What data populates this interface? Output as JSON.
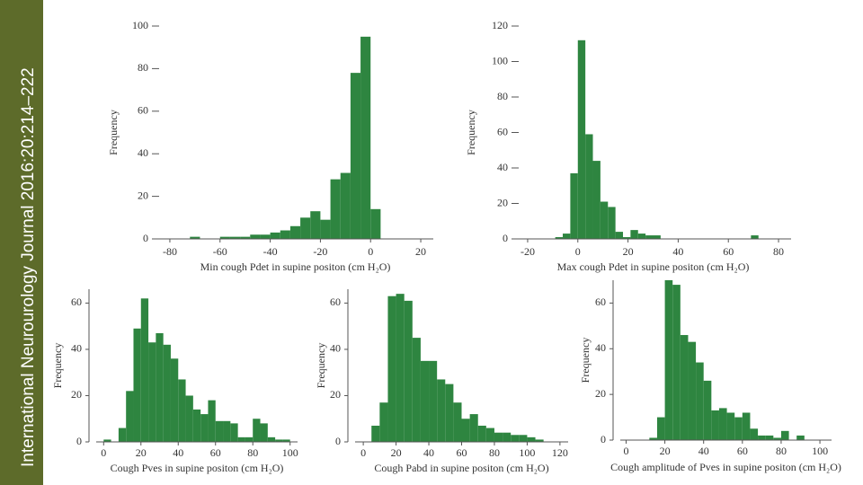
{
  "sidebar": {
    "text": "International Neurourology Journal 2016:20:214–222"
  },
  "chart_data": [
    {
      "type": "histogram",
      "color": "#2e8540",
      "spine_left": false,
      "x_label": "Min cough Pdet in supine positon (cm H₂O)",
      "y_label": "Frequency",
      "bins": [
        -72,
        -68,
        -64,
        -60,
        -56,
        -52,
        -48,
        -44,
        -40,
        -36,
        -32,
        -28,
        -24,
        -20,
        -16,
        -12,
        -8,
        -4,
        0,
        4
      ],
      "values": [
        1,
        0,
        0,
        1,
        1,
        1,
        2,
        2,
        3,
        4,
        6,
        10,
        13,
        9,
        28,
        31,
        78,
        95,
        14
      ],
      "xlim": [
        -85,
        25
      ],
      "xticks": [
        -80,
        -60,
        -40,
        -20,
        0,
        20
      ],
      "ylim": [
        0,
        100
      ],
      "yticks": [
        0,
        20,
        40,
        60,
        80,
        100
      ]
    },
    {
      "type": "histogram",
      "color": "#2e8540",
      "spine_left": false,
      "x_label": "Max cough Pdet in supine positon (cm H₂O)",
      "y_label": "Frequency",
      "bins": [
        -9,
        -6,
        -3,
        0,
        3,
        6,
        9,
        12,
        15,
        18,
        21,
        24,
        27,
        30,
        33,
        36,
        39,
        42,
        45,
        48,
        51,
        54,
        57,
        60,
        63,
        66,
        69,
        72
      ],
      "values": [
        1,
        3,
        37,
        112,
        59,
        44,
        21,
        18,
        4,
        1,
        5,
        3,
        2,
        2,
        0,
        0,
        0,
        0,
        0,
        0,
        0,
        0,
        0,
        0,
        0,
        0,
        2
      ],
      "xlim": [
        -25,
        85
      ],
      "xticks": [
        -20,
        0,
        20,
        40,
        60,
        80
      ],
      "ylim": [
        0,
        120
      ],
      "yticks": [
        0,
        20,
        40,
        60,
        80,
        100,
        120
      ]
    },
    {
      "type": "histogram",
      "color": "#2e8540",
      "spine_left": true,
      "x_label": "Cough Pves in supine positon (cm H₂O)",
      "y_label": "Frequency",
      "bins": [
        0,
        4,
        8,
        12,
        16,
        20,
        24,
        28,
        32,
        36,
        40,
        44,
        48,
        52,
        56,
        60,
        64,
        68,
        72,
        76,
        80,
        84,
        88,
        92,
        96,
        100
      ],
      "values": [
        1,
        0,
        6,
        22,
        49,
        62,
        43,
        47,
        42,
        36,
        27,
        20,
        14,
        12,
        18,
        9,
        9,
        8,
        2,
        2,
        10,
        8,
        2,
        1,
        1
      ],
      "xlim": [
        -4,
        104
      ],
      "xticks": [
        0,
        20,
        40,
        60,
        80,
        100
      ],
      "ylim": [
        0,
        66
      ],
      "yticks": [
        0,
        20,
        40,
        60
      ]
    },
    {
      "type": "histogram",
      "color": "#2e8540",
      "spine_left": true,
      "x_label": "Cough Pabd in supine positon (cm H₂O)",
      "y_label": "Frequency",
      "bins": [
        5,
        10,
        15,
        20,
        25,
        30,
        35,
        40,
        45,
        50,
        55,
        60,
        65,
        70,
        75,
        80,
        85,
        90,
        95,
        100,
        105,
        110
      ],
      "values": [
        7,
        17,
        63,
        64,
        61,
        45,
        35,
        35,
        27,
        25,
        17,
        10,
        12,
        7,
        6,
        4,
        4,
        3,
        3,
        2,
        1
      ],
      "xlim": [
        -5,
        125
      ],
      "xticks": [
        0,
        20,
        40,
        60,
        80,
        100,
        120
      ],
      "ylim": [
        0,
        66
      ],
      "yticks": [
        0,
        20,
        40,
        60
      ]
    },
    {
      "type": "histogram",
      "color": "#2e8540",
      "spine_left": true,
      "x_label": "Cough amplitude of Pves in supine positon (cm H₂O)",
      "y_label": "Frequency",
      "bins": [
        12,
        16,
        20,
        24,
        28,
        32,
        36,
        40,
        44,
        48,
        52,
        56,
        60,
        64,
        68,
        72,
        76,
        80,
        84,
        88,
        92
      ],
      "values": [
        1,
        10,
        70,
        68,
        46,
        43,
        34,
        26,
        13,
        14,
        12,
        10,
        12,
        5,
        2,
        2,
        1,
        4,
        0,
        2
      ],
      "xlim": [
        -3,
        106
      ],
      "xticks": [
        0,
        20,
        40,
        60,
        80,
        100
      ],
      "ylim": [
        0,
        70
      ],
      "yticks": [
        0,
        20,
        40,
        60
      ]
    }
  ]
}
